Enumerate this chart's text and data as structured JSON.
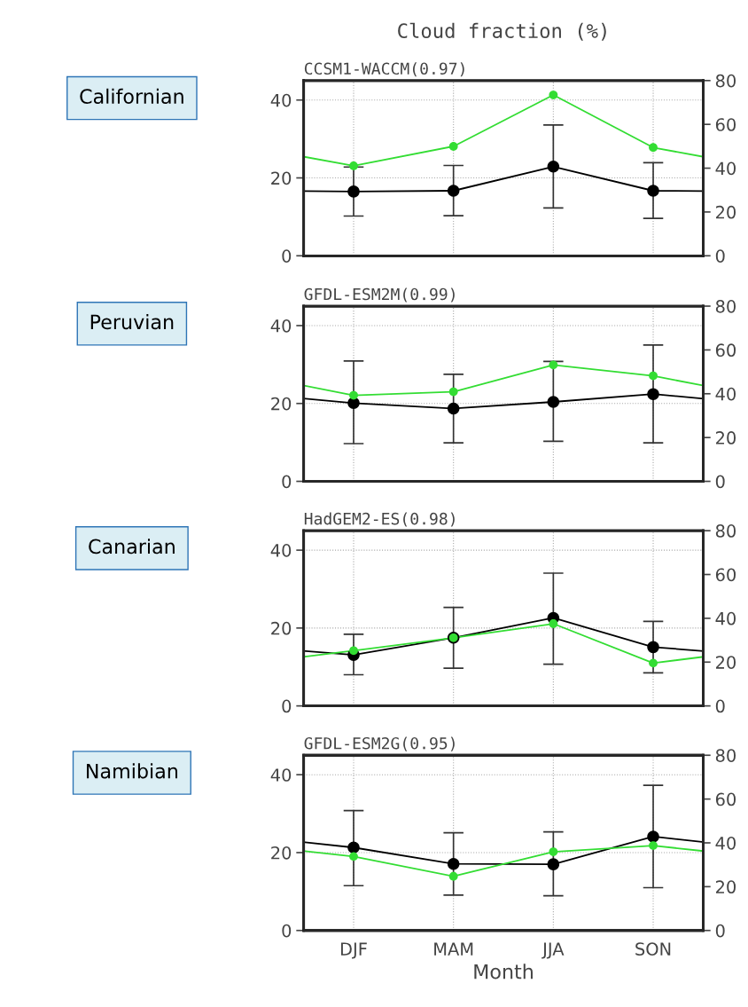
{
  "chart_data": [
    {
      "type": "line",
      "title": "CCSM1-WACCM(0.97)",
      "ylabel": "Californian",
      "annotations": [
        "Cloud fraction (%)"
      ],
      "categories": [
        null,
        null,
        null,
        null
      ],
      "ylim": [
        0,
        45
      ],
      "yticks": [
        0,
        20,
        40
      ],
      "y2lim": [
        0,
        80
      ],
      "y2ticks": [
        0,
        20,
        40,
        60,
        80
      ],
      "grid": true,
      "marker": "circle",
      "series": [
        {
          "color": "#000000",
          "values": [
            16.5,
            16.7,
            22.9,
            16.7
          ],
          "errors": [
            [
              10.2,
              22.8
            ],
            [
              10.3,
              23.2
            ],
            [
              12.3,
              33.6
            ],
            [
              9.6,
              23.9
            ]
          ]
        },
        {
          "color": "#33dd33",
          "values": [
            23.1,
            28.1,
            41.3,
            27.8
          ]
        }
      ]
    },
    {
      "type": "line",
      "title": "GFDL-ESM2M(0.99)",
      "ylabel": "Peruvian",
      "categories": [
        null,
        null,
        null,
        null
      ],
      "ylim": [
        0,
        45
      ],
      "yticks": [
        0,
        20,
        40
      ],
      "y2lim": [
        0,
        80
      ],
      "y2ticks": [
        0,
        20,
        40,
        60,
        80
      ],
      "grid": true,
      "marker": "circle",
      "series": [
        {
          "color": "#000000",
          "values": [
            20.1,
            18.7,
            20.4,
            22.4
          ],
          "errors": [
            [
              9.7,
              30.9
            ],
            [
              9.9,
              27.5
            ],
            [
              10.3,
              30.8
            ],
            [
              9.9,
              35.0
            ]
          ]
        },
        {
          "color": "#33dd33",
          "values": [
            22.1,
            23.0,
            29.9,
            27.1
          ]
        }
      ]
    },
    {
      "type": "line",
      "title": "HadGEM2-ES(0.98)",
      "ylabel": "Canarian",
      "categories": [
        null,
        null,
        null,
        null
      ],
      "ylim": [
        0,
        45
      ],
      "yticks": [
        0,
        20,
        40
      ],
      "y2lim": [
        0,
        80
      ],
      "y2ticks": [
        0,
        20,
        40,
        60,
        80
      ],
      "grid": true,
      "marker": "circle",
      "series": [
        {
          "color": "#000000",
          "values": [
            13.1,
            17.5,
            22.6,
            15.1
          ],
          "errors": [
            [
              8.0,
              18.4
            ],
            [
              9.7,
              25.3
            ],
            [
              10.7,
              34.1
            ],
            [
              8.5,
              21.7
            ]
          ]
        },
        {
          "color": "#33dd33",
          "values": [
            14.2,
            17.5,
            21.1,
            11.0
          ]
        }
      ]
    },
    {
      "type": "line",
      "title": "GFDL-ESM2G(0.95)",
      "ylabel": "Namibian",
      "xlabel": "Month",
      "categories": [
        "DJF",
        "MAM",
        "JJA",
        "SON"
      ],
      "ylim": [
        0,
        45
      ],
      "yticks": [
        0,
        20,
        40
      ],
      "y2lim": [
        0,
        80
      ],
      "y2ticks": [
        0,
        20,
        40,
        60,
        80
      ],
      "grid": true,
      "marker": "circle",
      "series": [
        {
          "color": "#000000",
          "values": [
            21.3,
            17.1,
            17.0,
            24.1
          ],
          "errors": [
            [
              11.5,
              30.8
            ],
            [
              9.1,
              25.1
            ],
            [
              8.9,
              25.3
            ],
            [
              11.0,
              37.3
            ]
          ]
        },
        {
          "color": "#33dd33",
          "values": [
            19.0,
            13.9,
            20.2,
            21.8
          ]
        }
      ]
    }
  ]
}
